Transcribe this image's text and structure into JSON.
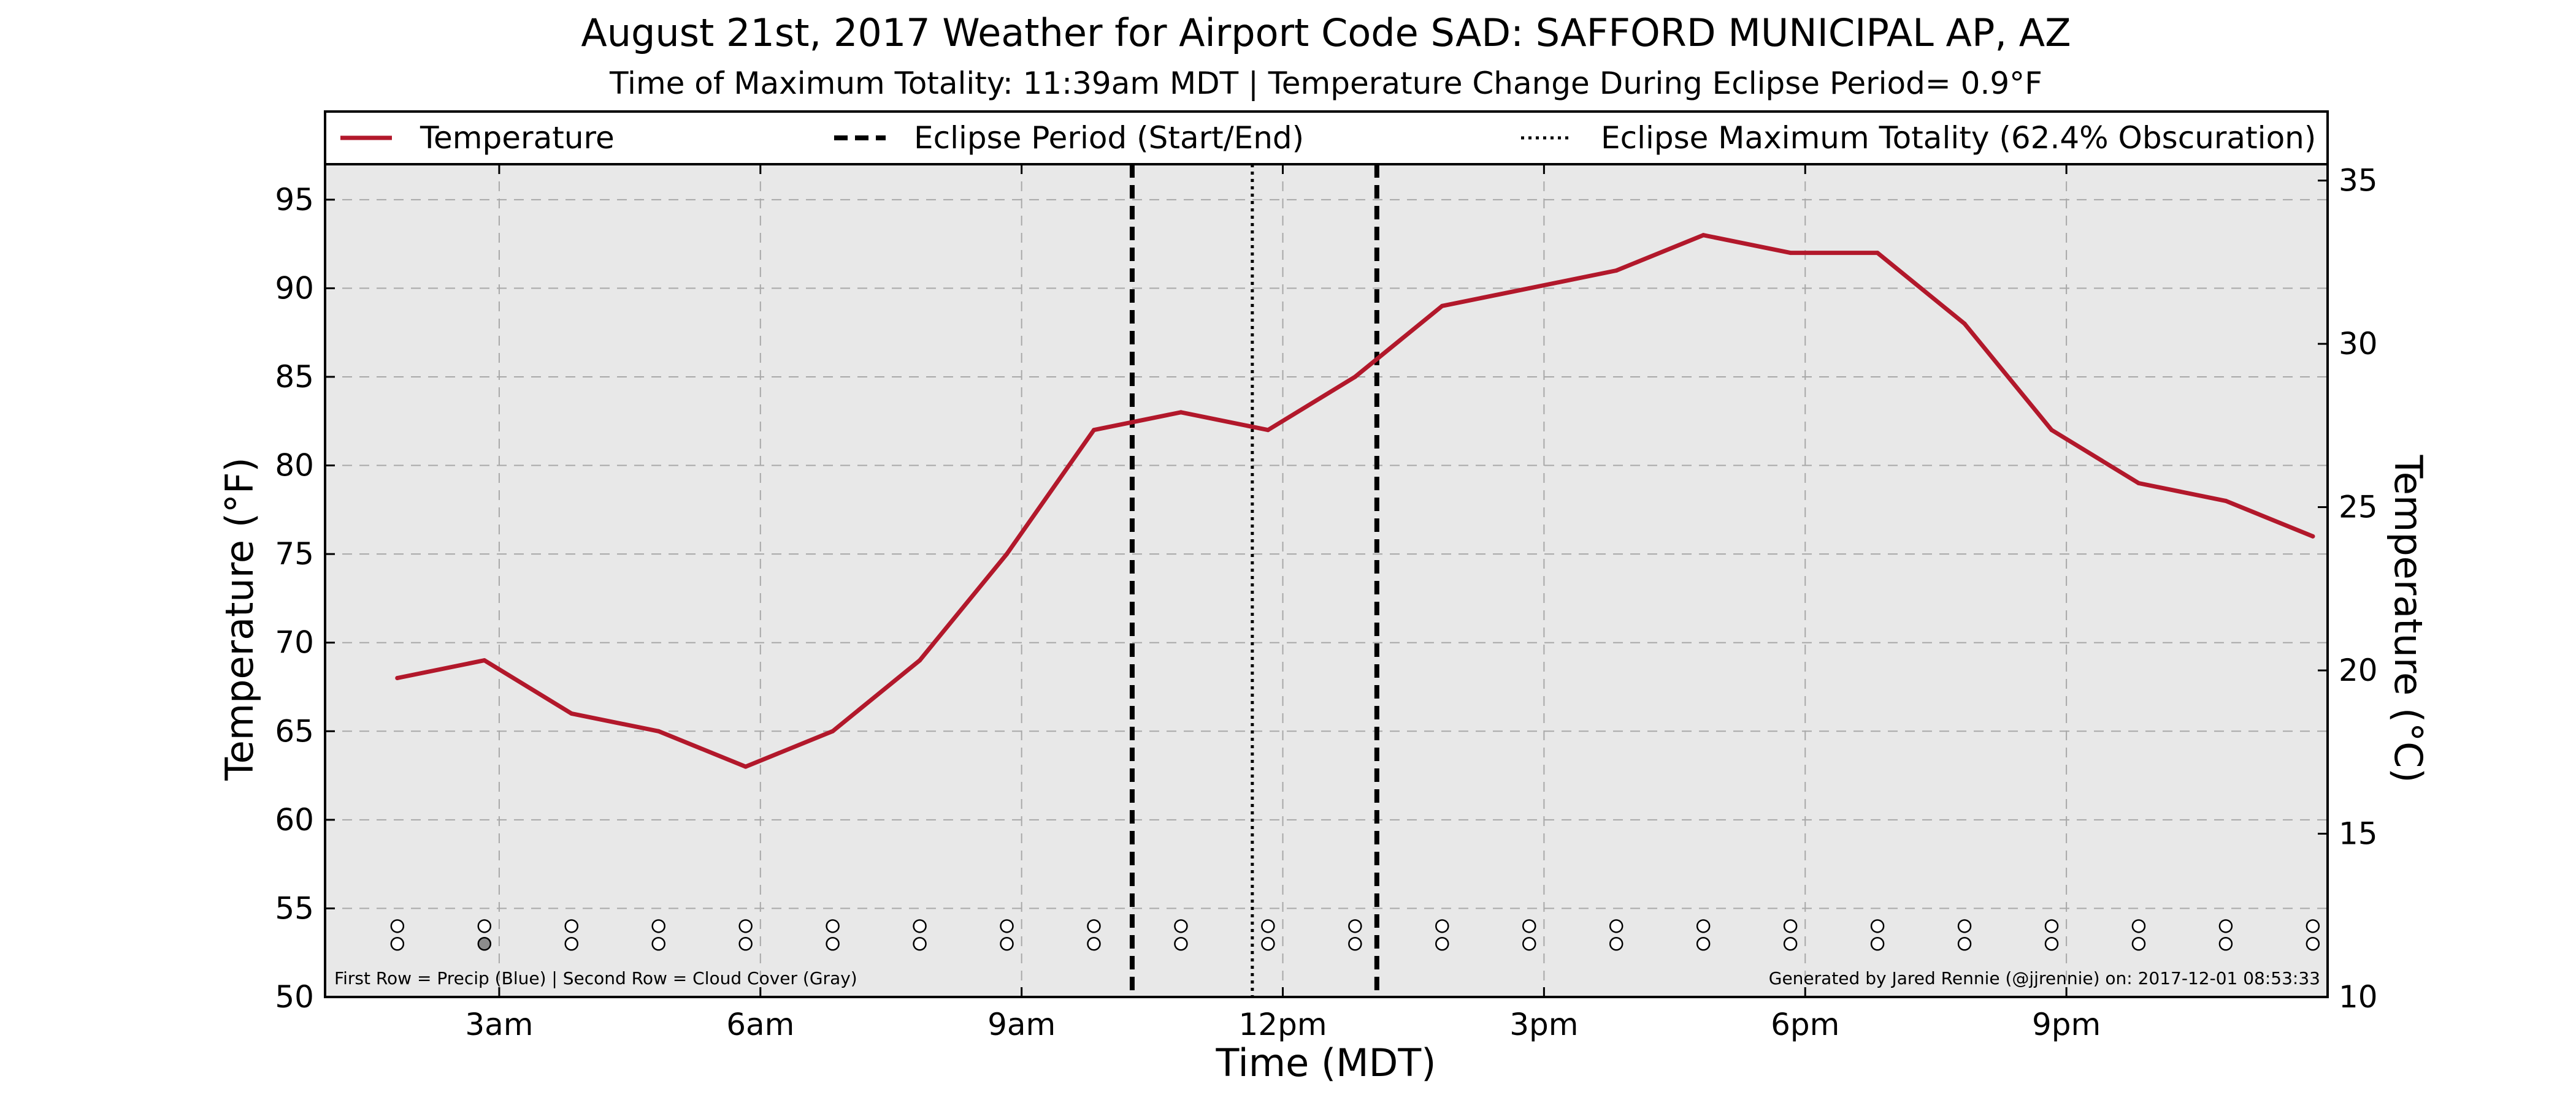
{
  "chart_data": {
    "type": "line",
    "title": "August 21st, 2017 Weather for Airport Code SAD: SAFFORD MUNICIPAL AP, AZ",
    "subtitle": "Time of Maximum Totality: 11:39am MDT | Temperature Change During Eclipse Period= 0.9°F",
    "xlabel": "Time (MDT)",
    "ylabel": "Temperature (°F)",
    "ylabel_right": "Temperature (°C)",
    "xlim": [
      1,
      24
    ],
    "ylim": [
      50,
      97
    ],
    "ylim_right": [
      10,
      35.5
    ],
    "x_ticks": [
      3,
      6,
      9,
      12,
      15,
      18,
      21
    ],
    "x_tick_labels": [
      "3am",
      "6am",
      "9am",
      "12pm",
      "3pm",
      "6pm",
      "9pm"
    ],
    "y_ticks": [
      50,
      55,
      60,
      65,
      70,
      75,
      80,
      85,
      90,
      95
    ],
    "y_tick_labels": [
      "50",
      "55",
      "60",
      "65",
      "70",
      "75",
      "80",
      "85",
      "90",
      "95"
    ],
    "y_ticks_right": [
      10,
      15,
      20,
      25,
      30,
      35
    ],
    "y_tick_labels_right": [
      "10",
      "15",
      "20",
      "25",
      "30",
      "35"
    ],
    "grid": true,
    "legend_position": "top",
    "legend": [
      {
        "label": "Temperature",
        "style": "solid",
        "color": "#b2182b"
      },
      {
        "label": "Eclipse Period (Start/End)",
        "style": "dashed",
        "color": "#000000"
      },
      {
        "label": "Eclipse Maximum Totality (62.4% Obscuration)",
        "style": "dotted",
        "color": "#000000"
      }
    ],
    "series": [
      {
        "name": "Temperature",
        "color": "#b2182b",
        "x": [
          1.83,
          2.83,
          3.83,
          4.83,
          5.83,
          6.83,
          7.83,
          8.83,
          9.83,
          10.83,
          11.83,
          12.83,
          13.83,
          14.83,
          15.83,
          16.83,
          17.83,
          18.83,
          19.83,
          20.83,
          21.83,
          22.83,
          23.83
        ],
        "values": [
          68,
          69,
          66,
          65,
          63,
          65,
          69,
          75,
          82,
          83,
          82,
          85,
          89,
          90,
          91,
          93,
          92,
          92,
          88,
          82,
          79,
          78,
          76
        ]
      }
    ],
    "eclipse_start": 10.27,
    "eclipse_end": 13.08,
    "eclipse_max": 11.65,
    "indicator_rows": {
      "x": [
        1.83,
        2.83,
        3.83,
        4.83,
        5.83,
        6.83,
        7.83,
        8.83,
        9.83,
        10.83,
        11.83,
        12.83,
        13.83,
        14.83,
        15.83,
        16.83,
        17.83,
        18.83,
        19.83,
        20.83,
        21.83,
        22.83,
        23.83
      ],
      "precip": [
        0,
        0,
        0,
        0,
        0,
        0,
        0,
        0,
        0,
        0,
        0,
        0,
        0,
        0,
        0,
        0,
        0,
        0,
        0,
        0,
        0,
        0,
        0
      ],
      "cloud": [
        0,
        1,
        0,
        0,
        0,
        0,
        0,
        0,
        0,
        0,
        0,
        0,
        0,
        0,
        0,
        0,
        0,
        0,
        0,
        0,
        0,
        0,
        0
      ],
      "precip_y": 54,
      "cloud_y": 53
    },
    "annotation_left": "First Row = Precip (Blue) | Second Row = Cloud Cover (Gray)",
    "annotation_right": "Generated by Jared Rennie (@jjrennie) on: 2017-12-01 08:53:33",
    "colors": {
      "plot_background": "#e8e8e8",
      "temperature": "#b2182b",
      "grid": "#a8a8a8",
      "cloud_fill": "#8c8c8c"
    }
  }
}
